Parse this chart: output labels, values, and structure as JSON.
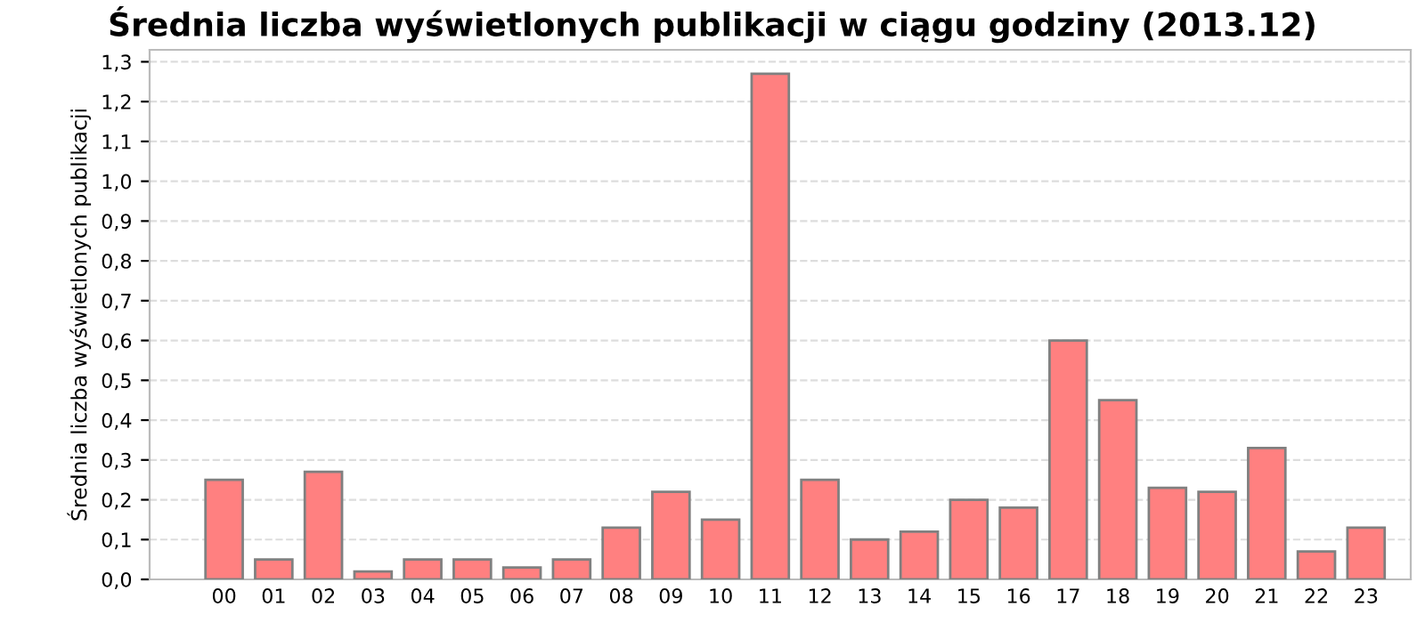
{
  "chart_data": {
    "type": "bar",
    "title": "Średnia liczba wyświetlonych publikacji w ciągu godziny (2013.12)",
    "ylabel": "Średnia liczba wyświetlonych publikacji",
    "categories": [
      "00",
      "01",
      "02",
      "03",
      "04",
      "05",
      "06",
      "07",
      "08",
      "09",
      "10",
      "11",
      "12",
      "13",
      "14",
      "15",
      "16",
      "17",
      "18",
      "19",
      "20",
      "21",
      "22",
      "23"
    ],
    "values": [
      0.25,
      0.05,
      0.27,
      0.02,
      0.05,
      0.05,
      0.03,
      0.05,
      0.13,
      0.22,
      0.15,
      1.27,
      0.25,
      0.1,
      0.12,
      0.2,
      0.18,
      0.6,
      0.45,
      0.23,
      0.22,
      0.33,
      0.07,
      0.13
    ],
    "color": "#ff8080",
    "ylim": [
      0,
      1.33
    ],
    "yticks": [
      {
        "value": 0,
        "label": "0,0"
      },
      {
        "value": 0.1,
        "label": "0,1"
      },
      {
        "value": 0.2,
        "label": "0,2"
      },
      {
        "value": 0.3,
        "label": "0,3"
      },
      {
        "value": 0.4,
        "label": "0,4"
      },
      {
        "value": 0.5,
        "label": "0,5"
      },
      {
        "value": 0.6,
        "label": "0,6"
      },
      {
        "value": 0.7,
        "label": "0,7"
      },
      {
        "value": 0.8,
        "label": "0,8"
      },
      {
        "value": 0.9,
        "label": "0,9"
      },
      {
        "value": 1.0,
        "label": "1,0"
      },
      {
        "value": 1.1,
        "label": "1,1"
      },
      {
        "value": 1.2,
        "label": "1,2"
      },
      {
        "value": 1.3,
        "label": "1,3"
      }
    ],
    "grid": "y"
  }
}
